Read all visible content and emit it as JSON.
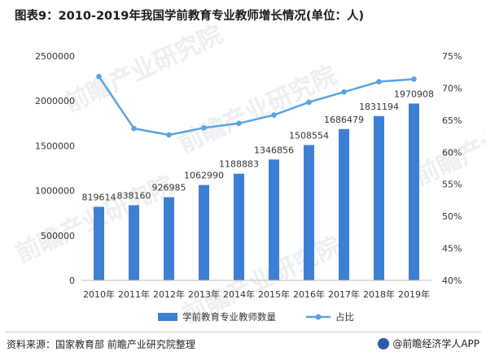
{
  "page": {
    "title": "图表9：2010-2019年我国学前教育专业教师增长情况(单位：人)",
    "source": "资料来源：国家教育部 前瞻产业研究院整理",
    "brand": "@前瞻经济学人APP",
    "watermark": "前瞻产业研究院"
  },
  "chart_data": {
    "type": "bar",
    "categories": [
      "2010年",
      "2011年",
      "2012年",
      "2013年",
      "2014年",
      "2015年",
      "2016年",
      "2017年",
      "2018年",
      "2019年"
    ],
    "series": [
      {
        "name": "学前教育专业教师数量",
        "type": "bar",
        "axis": "left",
        "color": "#3e7fd6",
        "values": [
          819614,
          838160,
          926985,
          1062990,
          1188883,
          1346856,
          1508554,
          1686479,
          1831194,
          1970908
        ],
        "labels": [
          "819614",
          "838160",
          "926985",
          "1062990",
          "1188883",
          "1346856",
          "1508554",
          "1686479",
          "1831194",
          "1970908"
        ]
      },
      {
        "name": "占比",
        "type": "line",
        "axis": "right",
        "color": "#5ba3de",
        "values": [
          71.8,
          63.7,
          62.7,
          63.8,
          64.5,
          65.8,
          67.8,
          69.4,
          71.0,
          71.4
        ]
      }
    ],
    "ylim": [
      0,
      2500000
    ],
    "yticks": [
      0,
      500000,
      1000000,
      1500000,
      2000000,
      2500000
    ],
    "ytick_labels": [
      "0",
      "500000",
      "1000000",
      "1500000",
      "2000000",
      "2500000"
    ],
    "y2lim": [
      40,
      75
    ],
    "y2ticks": [
      40,
      45,
      50,
      55,
      60,
      65,
      70,
      75
    ],
    "y2tick_labels": [
      "40%",
      "45%",
      "50%",
      "55%",
      "60%",
      "65%",
      "70%",
      "75%"
    ],
    "grid": false,
    "legend_position": "bottom"
  }
}
